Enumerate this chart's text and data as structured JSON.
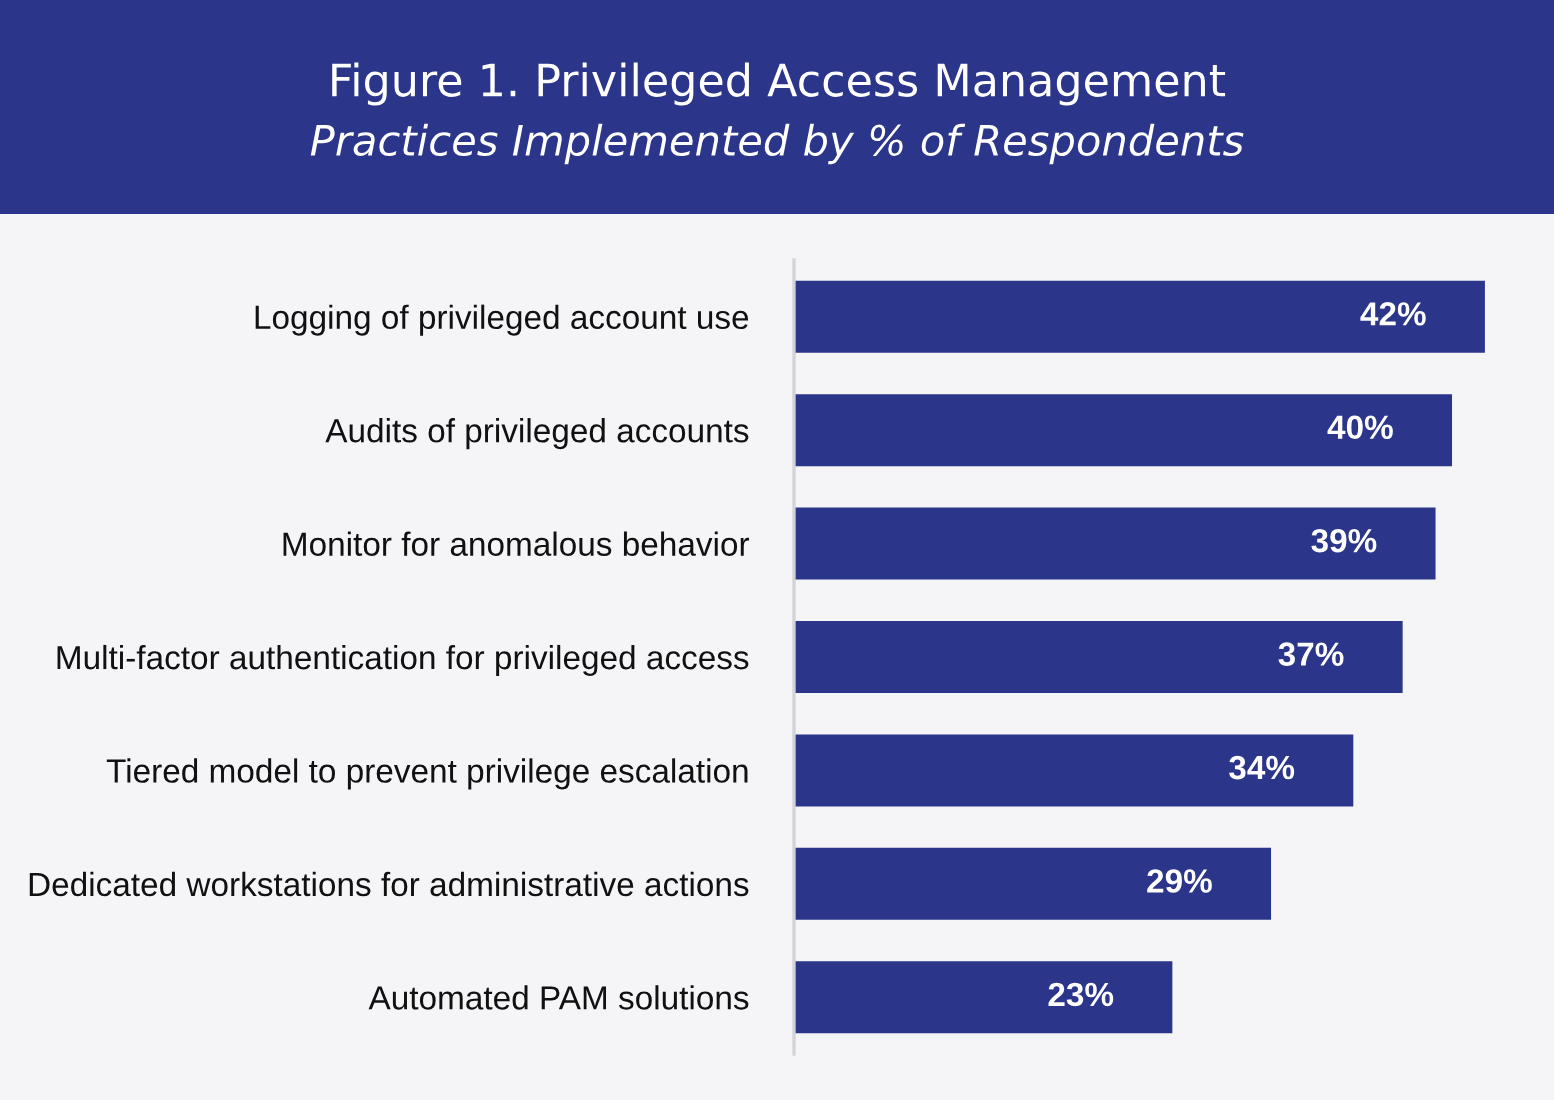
{
  "chart_data": {
    "type": "bar",
    "orientation": "horizontal",
    "title": "Figure 1. Privileged Access Management",
    "subtitle": "Practices Implemented by % of Respondents",
    "categories": [
      "Logging of privileged account use",
      "Audits of privileged accounts",
      "Monitor for anomalous behavior",
      "Multi-factor authentication for privileged access",
      "Tiered model to prevent privilege escalation",
      "Dedicated workstations for administrative actions",
      "Automated PAM solutions"
    ],
    "values": [
      42,
      40,
      39,
      37,
      34,
      29,
      23
    ],
    "value_labels": [
      "42%",
      "40%",
      "39%",
      "37%",
      "34%",
      "29%",
      "23%"
    ],
    "color": "#2b3589",
    "tick_labels": "y",
    "grid": false,
    "legend": false
  }
}
